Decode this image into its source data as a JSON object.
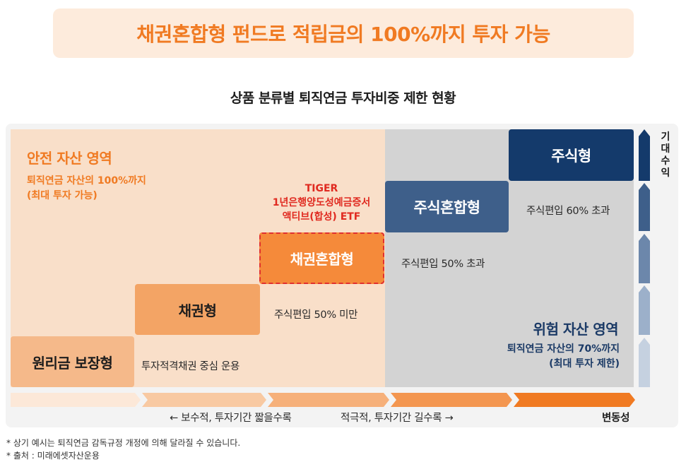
{
  "headline": "채권혼합형 펀드로 적립금의 100%까지 투자 가능",
  "subtitle": "상품 분류별 퇴직연금 투자비중 제한 현황",
  "safe_zone": {
    "title": "안전 자산 영역",
    "desc_line1": "퇴직연금 자산의 100%까지",
    "desc_line2": "(최대 투자 가능)"
  },
  "risk_zone": {
    "title": "위험 자산 영역",
    "desc_line1": "퇴직연금 자산의 70%까지",
    "desc_line2": "(최대 투자 제한)"
  },
  "steps": [
    {
      "label": "원리금 보장형",
      "note": "투자적격채권 중심 운용",
      "color": "#f5b98a"
    },
    {
      "label": "채권형",
      "note": "주식편입 50% 미만",
      "color": "#f3a465"
    },
    {
      "label": "채권혼합형",
      "note": "주식편입 50% 초과",
      "color": "#f58a3a"
    },
    {
      "label": "주식혼합형",
      "note": "주식편입 60% 초과",
      "color": "#3e5f8a"
    },
    {
      "label": "주식형",
      "note": "",
      "color": "#143a6b"
    }
  ],
  "highlight": {
    "line1": "TIGER",
    "line2": "1년은행양도성예금증서",
    "line3": "액티브(합성) ETF",
    "color": "#e02a20"
  },
  "expected_return_label": "기대수익",
  "axis": {
    "left_label": "← 보수적, 투자기간 짧을수록",
    "right_label": "적극적, 투자기간 길수록 →",
    "end_label": "변동성"
  },
  "footnotes": [
    "* 상기 예시는 퇴직연금 감독규정 개정에 의해 달라질 수 있습니다.",
    "* 출처 : 미래에셋자산운용"
  ],
  "colors": {
    "accent_orange": "#f07a22",
    "navy": "#143a6b",
    "highlight_red": "#e02a20"
  }
}
